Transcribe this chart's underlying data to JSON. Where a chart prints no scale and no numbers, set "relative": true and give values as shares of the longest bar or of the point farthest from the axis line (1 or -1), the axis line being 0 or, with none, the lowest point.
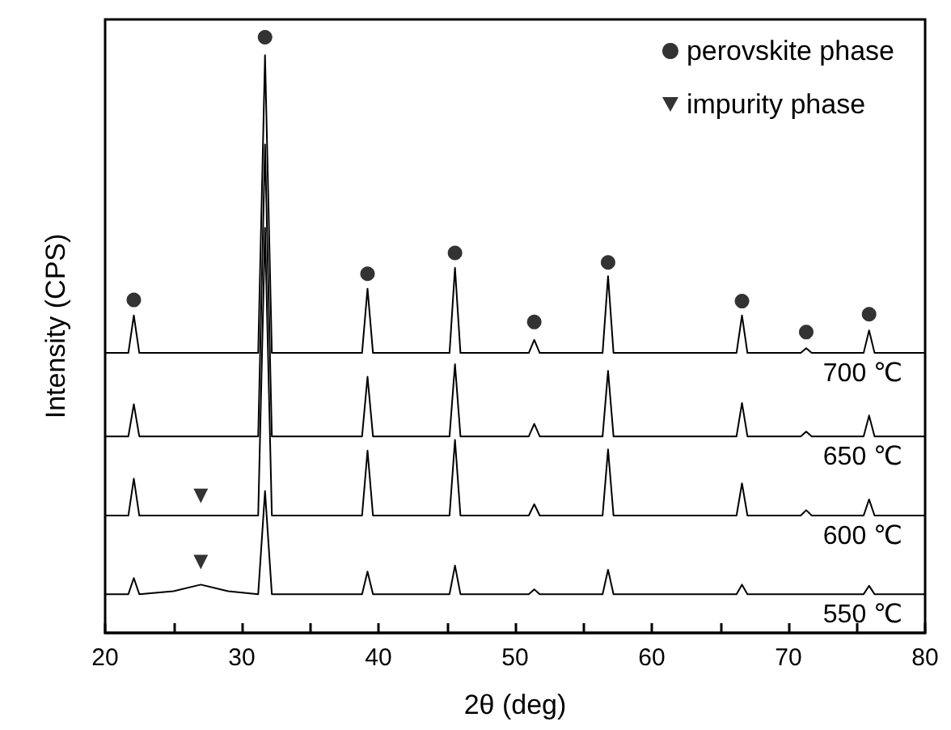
{
  "chart_data": {
    "type": "line",
    "relative": true,
    "xlabel": "2θ (deg)",
    "ylabel": "Intensity (CPS)",
    "xlim": [
      20,
      80
    ],
    "xticks": [
      20,
      {
        "value": 25,
        "label": null
      },
      30,
      {
        "value": 35,
        "label": null
      },
      40,
      {
        "value": 45,
        "label": null
      },
      50,
      {
        "value": 55,
        "label": null
      },
      60,
      {
        "value": 65,
        "label": null
      },
      70,
      {
        "value": 75,
        "label": null
      },
      80
    ],
    "tick_labels": "x",
    "grid": false,
    "legend": "top right",
    "marker": "none",
    "line_style": "solid",
    "x": [
      20,
      21.7,
      22.1,
      22.5,
      25,
      27,
      29,
      31.2,
      31.7,
      32.2,
      38.8,
      39.2,
      39.6,
      45.2,
      45.6,
      46.0,
      51.0,
      51.4,
      51.8,
      56.4,
      56.8,
      57.2,
      66.2,
      66.6,
      67.0,
      70.9,
      71.3,
      71.7,
      75.5,
      75.9,
      76.3,
      80
    ],
    "series": [
      {
        "name": "700 ℃",
        "color": "#000000",
        "values": [
          0.47,
          0.47,
          0.533,
          0.47,
          0.47,
          0.47,
          0.47,
          0.47,
          0.97,
          0.47,
          0.47,
          0.578,
          0.47,
          0.47,
          0.613,
          0.47,
          0.47,
          0.492,
          0.47,
          0.47,
          0.599,
          0.47,
          0.47,
          0.533,
          0.47,
          0.47,
          0.478,
          0.47,
          0.47,
          0.508,
          0.47,
          0.47
        ]
      },
      {
        "name": "650 ℃",
        "color": "#000000",
        "values": [
          0.33,
          0.33,
          0.384,
          0.33,
          0.33,
          0.33,
          0.33,
          0.33,
          0.82,
          0.33,
          0.33,
          0.43,
          0.33,
          0.33,
          0.451,
          0.33,
          0.33,
          0.351,
          0.33,
          0.33,
          0.44,
          0.33,
          0.33,
          0.386,
          0.33,
          0.33,
          0.338,
          0.33,
          0.33,
          0.365,
          0.33,
          0.33
        ]
      },
      {
        "name": "600 ℃",
        "color": "#000000",
        "values": [
          0.197,
          0.197,
          0.259,
          0.197,
          0.197,
          0.197,
          0.197,
          0.197,
          0.68,
          0.197,
          0.197,
          0.306,
          0.197,
          0.197,
          0.324,
          0.197,
          0.197,
          0.216,
          0.197,
          0.197,
          0.308,
          0.197,
          0.197,
          0.251,
          0.197,
          0.197,
          0.206,
          0.197,
          0.197,
          0.224,
          0.197,
          0.197
        ]
      },
      {
        "name": "550 ℃",
        "color": "#000000",
        "values": [
          0.065,
          0.065,
          0.092,
          0.065,
          0.07,
          0.081,
          0.07,
          0.065,
          0.238,
          0.065,
          0.065,
          0.103,
          0.065,
          0.065,
          0.113,
          0.065,
          0.065,
          0.073,
          0.065,
          0.065,
          0.106,
          0.065,
          0.065,
          0.081,
          0.065,
          0.065,
          0.065,
          0.065,
          0.065,
          0.079,
          0.065,
          0.065
        ]
      },
      {
        "name": "perovskite phase",
        "type": "scatter",
        "marker": "circle",
        "color": "#000000",
        "x": [
          22.1,
          31.7,
          39.2,
          45.6,
          51.4,
          56.8,
          66.6,
          71.3,
          75.9
        ],
        "values": [
          0.559,
          1.0,
          0.603,
          0.638,
          0.522,
          0.622,
          0.557,
          0.505,
          0.535
        ]
      },
      {
        "name": "impurity phase",
        "type": "scatter",
        "marker": "triangle-down",
        "color": "#000000",
        "x": [
          27,
          27
        ],
        "values": [
          0.23,
          0.119
        ]
      }
    ]
  }
}
